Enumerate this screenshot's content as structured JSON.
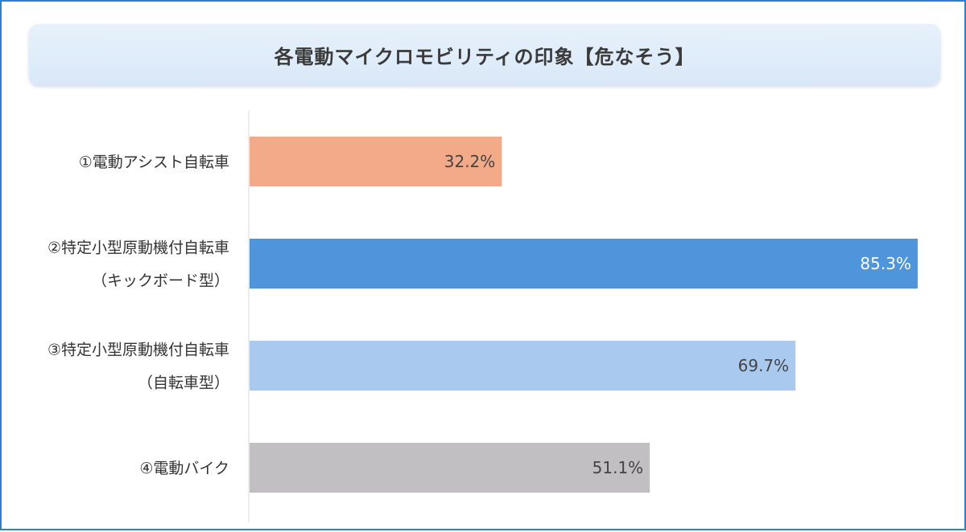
{
  "chart_data": {
    "type": "bar",
    "orientation": "horizontal",
    "title": "各電動マイクロモビリティの印象【危なそう】",
    "categories": [
      [
        "①電動アシスト自転車"
      ],
      [
        "②特定小型原動機付自転車",
        "（キックボード型）"
      ],
      [
        "③特定小型原動機付自転車",
        "（自転車型）"
      ],
      [
        "④電動バイク"
      ]
    ],
    "values": [
      32.2,
      85.3,
      69.7,
      51.1
    ],
    "value_labels": [
      "32.2%",
      "85.3%",
      "69.7%",
      "51.1%"
    ],
    "unit": "%",
    "xlim": [
      0,
      100
    ],
    "grid": false,
    "legend": "none",
    "colors": [
      "#f2aa88",
      "#4f95dc",
      "#a9c9ee",
      "#c1bfc1"
    ],
    "label_colors": [
      "#444444",
      "#ffffff",
      "#444444",
      "#444444"
    ]
  }
}
